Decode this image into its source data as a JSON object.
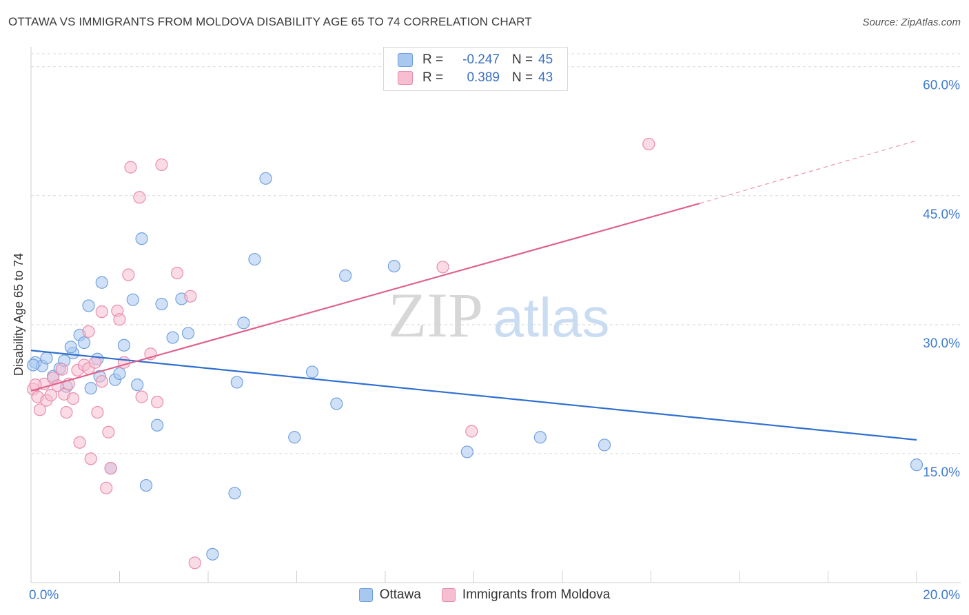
{
  "title": "OTTAWA VS IMMIGRANTS FROM MOLDOVA DISABILITY AGE 65 TO 74 CORRELATION CHART",
  "source": "Source: ZipAtlas.com",
  "watermark": {
    "zip": "ZIP",
    "atlas": "atlas"
  },
  "colors": {
    "ottawa_fill": "#a9c8f0",
    "ottawa_stroke": "#6fa0de",
    "ottawa_line": "#2f6fcf",
    "moldova_fill": "#f7bdd0",
    "moldova_stroke": "#e88cab",
    "moldova_line": "#e0628c",
    "grid": "#d8d8d8",
    "axis_text": "#3f7bd1"
  },
  "legend": {
    "rows": [
      {
        "r_label": "R =",
        "r_value": "-0.247",
        "n_label": "N =",
        "n_value": "45"
      },
      {
        "r_label": "R =",
        "r_value": "0.389",
        "n_label": "N =",
        "n_value": "43"
      }
    ]
  },
  "bottom_legend": [
    "Ottawa",
    "Immigrants from Moldova"
  ],
  "chart_data": {
    "type": "scatter",
    "title": "OTTAWA VS IMMIGRANTS FROM MOLDOVA DISABILITY AGE 65 TO 74 CORRELATION CHART",
    "xlabel": "",
    "ylabel": "Disability Age 65 to 74",
    "xlim": [
      0,
      20
    ],
    "ylim": [
      0,
      61.5
    ],
    "x_tick_labels": [
      {
        "value": 0,
        "label": "0.0%"
      },
      {
        "value": 20,
        "label": "20.0%"
      }
    ],
    "y_tick_labels": [
      {
        "value": 15,
        "label": "15.0%"
      },
      {
        "value": 30,
        "label": "30.0%"
      },
      {
        "value": 45,
        "label": "45.0%"
      },
      {
        "value": 60,
        "label": "60.0%"
      }
    ],
    "series": [
      {
        "name": "Ottawa",
        "points": [
          [
            0.1,
            25.6
          ],
          [
            0.25,
            25.2
          ],
          [
            0.35,
            26.1
          ],
          [
            0.5,
            24.0
          ],
          [
            0.65,
            24.9
          ],
          [
            0.8,
            22.8
          ],
          [
            0.75,
            25.8
          ],
          [
            0.95,
            26.7
          ],
          [
            1.1,
            28.8
          ],
          [
            1.2,
            27.9
          ],
          [
            1.3,
            32.2
          ],
          [
            1.35,
            22.6
          ],
          [
            1.5,
            26.0
          ],
          [
            1.6,
            34.9
          ],
          [
            1.55,
            24.0
          ],
          [
            1.8,
            13.3
          ],
          [
            1.9,
            23.6
          ],
          [
            2.0,
            24.3
          ],
          [
            2.1,
            27.6
          ],
          [
            2.3,
            32.9
          ],
          [
            2.4,
            23.0
          ],
          [
            2.5,
            40.0
          ],
          [
            2.6,
            11.3
          ],
          [
            2.85,
            18.3
          ],
          [
            2.95,
            32.4
          ],
          [
            3.2,
            28.5
          ],
          [
            3.4,
            33.0
          ],
          [
            3.55,
            29.0
          ],
          [
            4.1,
            3.3
          ],
          [
            4.6,
            10.4
          ],
          [
            4.65,
            23.3
          ],
          [
            4.8,
            30.2
          ],
          [
            5.05,
            37.6
          ],
          [
            5.3,
            47.0
          ],
          [
            5.95,
            16.9
          ],
          [
            6.35,
            24.5
          ],
          [
            6.9,
            20.8
          ],
          [
            7.1,
            35.7
          ],
          [
            8.2,
            36.8
          ],
          [
            9.85,
            15.2
          ],
          [
            11.5,
            16.9
          ],
          [
            12.95,
            16.0
          ],
          [
            20.0,
            13.7
          ],
          [
            0.05,
            25.3
          ],
          [
            0.9,
            27.4
          ]
        ],
        "trend": {
          "x0": 0,
          "y0": 27.0,
          "x1": 20,
          "y1": 16.6
        }
      },
      {
        "name": "Immigrants from Moldova",
        "points": [
          [
            0.05,
            22.5
          ],
          [
            0.15,
            21.6
          ],
          [
            0.2,
            20.1
          ],
          [
            0.3,
            23.1
          ],
          [
            0.35,
            21.2
          ],
          [
            0.45,
            21.8
          ],
          [
            0.5,
            23.8
          ],
          [
            0.6,
            22.9
          ],
          [
            0.7,
            24.8
          ],
          [
            0.75,
            21.9
          ],
          [
            0.8,
            19.8
          ],
          [
            0.85,
            23.1
          ],
          [
            0.95,
            21.4
          ],
          [
            1.05,
            24.7
          ],
          [
            1.1,
            16.3
          ],
          [
            1.2,
            25.3
          ],
          [
            1.3,
            24.9
          ],
          [
            1.3,
            29.2
          ],
          [
            1.35,
            14.4
          ],
          [
            1.45,
            25.6
          ],
          [
            1.5,
            19.8
          ],
          [
            1.6,
            23.4
          ],
          [
            1.6,
            31.5
          ],
          [
            1.7,
            11.0
          ],
          [
            1.75,
            17.5
          ],
          [
            1.8,
            13.3
          ],
          [
            1.95,
            31.6
          ],
          [
            2.0,
            30.6
          ],
          [
            2.1,
            25.6
          ],
          [
            2.2,
            35.8
          ],
          [
            2.25,
            48.3
          ],
          [
            2.45,
            44.8
          ],
          [
            2.5,
            21.6
          ],
          [
            2.7,
            26.6
          ],
          [
            2.85,
            21.0
          ],
          [
            2.95,
            48.6
          ],
          [
            3.3,
            36.0
          ],
          [
            3.6,
            33.3
          ],
          [
            3.7,
            2.3
          ],
          [
            9.3,
            36.7
          ],
          [
            9.95,
            17.6
          ],
          [
            13.95,
            51.0
          ],
          [
            0.1,
            23.0
          ]
        ],
        "trend": {
          "x0": 0,
          "y0": 22.3,
          "x1": 15.1,
          "y1": 44.1
        },
        "trend_dashed_extension": {
          "x0": 15.1,
          "y0": 44.1,
          "x1": 20,
          "y1": 51.4
        }
      }
    ]
  }
}
